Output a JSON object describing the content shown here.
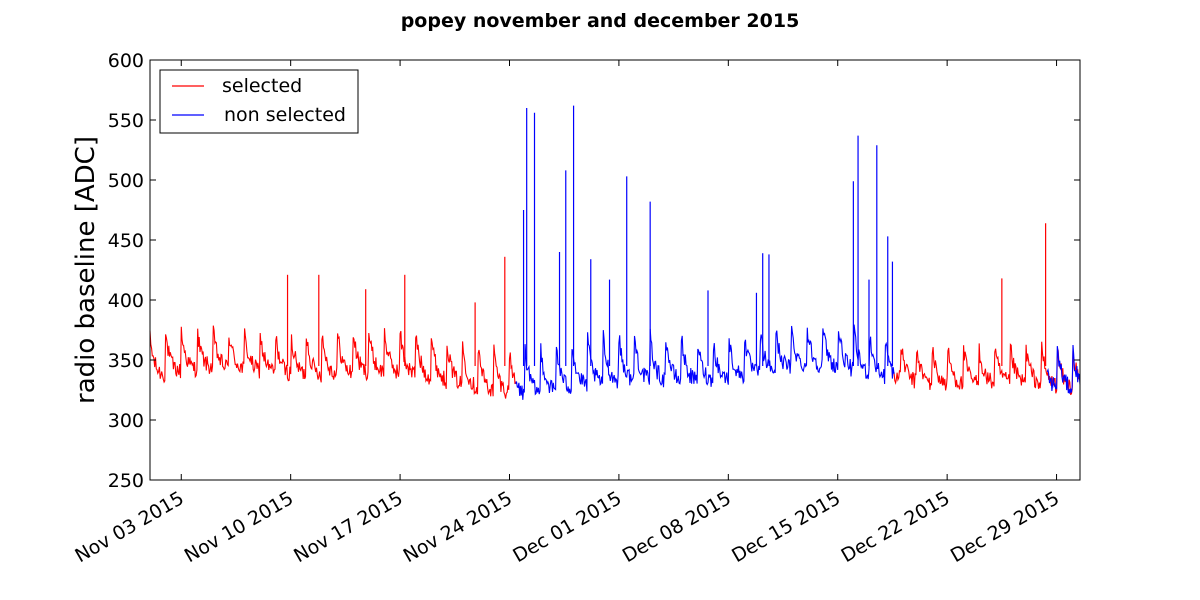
{
  "chart_data": {
    "type": "line",
    "title": "popey november and december 2015",
    "xlabel": "",
    "ylabel": "radio baseline [ADC]",
    "ylim": [
      250,
      600
    ],
    "yticks": [
      250,
      300,
      350,
      400,
      450,
      500,
      550,
      600
    ],
    "x_tick_labels": [
      "Nov 03 2015",
      "Nov 10 2015",
      "Nov 17 2015",
      "Nov 24 2015",
      "Dec 01 2015",
      "Dec 08 2015",
      "Dec 15 2015",
      "Dec 22 2015",
      "Dec 29 2015"
    ],
    "x_tick_days": [
      2,
      9,
      16,
      23,
      30,
      37,
      44,
      51,
      58
    ],
    "xlim_days": [
      0,
      59.5
    ],
    "x_unit": "days since Nov 01 2015",
    "legend_position": "upper-left",
    "series": [
      {
        "name": "selected",
        "color": "#ff0000",
        "segments": [
          [
            0,
            23.4
          ],
          [
            47.6,
            59.5
          ]
        ],
        "baseline": 345,
        "amplitude": 22,
        "spikes": [
          {
            "x": 8.8,
            "y": 421
          },
          {
            "x": 10.8,
            "y": 421
          },
          {
            "x": 13.8,
            "y": 409
          },
          {
            "x": 16.3,
            "y": 421
          },
          {
            "x": 20.8,
            "y": 398
          },
          {
            "x": 22.7,
            "y": 436
          },
          {
            "x": 54.5,
            "y": 418
          },
          {
            "x": 57.3,
            "y": 464
          }
        ]
      },
      {
        "name": "non selected",
        "color": "#0000ff",
        "segments": [
          [
            23.4,
            47.6
          ],
          [
            57.4,
            59.5
          ]
        ],
        "baseline": 345,
        "amplitude": 24,
        "spikes": [
          {
            "x": 23.9,
            "y": 475
          },
          {
            "x": 24.1,
            "y": 560
          },
          {
            "x": 24.6,
            "y": 556
          },
          {
            "x": 26.2,
            "y": 440
          },
          {
            "x": 26.6,
            "y": 508
          },
          {
            "x": 27.1,
            "y": 562
          },
          {
            "x": 28.2,
            "y": 434
          },
          {
            "x": 29.4,
            "y": 417
          },
          {
            "x": 30.5,
            "y": 503
          },
          {
            "x": 32.0,
            "y": 482
          },
          {
            "x": 35.7,
            "y": 408
          },
          {
            "x": 38.8,
            "y": 406
          },
          {
            "x": 39.2,
            "y": 439
          },
          {
            "x": 39.6,
            "y": 438
          },
          {
            "x": 45.0,
            "y": 499
          },
          {
            "x": 45.3,
            "y": 537
          },
          {
            "x": 46.0,
            "y": 417
          },
          {
            "x": 46.5,
            "y": 529
          },
          {
            "x": 47.2,
            "y": 453
          },
          {
            "x": 47.5,
            "y": 432
          }
        ]
      }
    ]
  }
}
